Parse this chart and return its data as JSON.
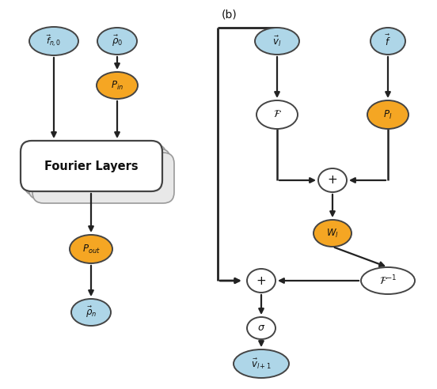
{
  "bg_color": "#ffffff",
  "blue_color": "#aed6e8",
  "orange_color": "#f5a623",
  "white_color": "#ffffff",
  "border_color": "#444444",
  "arrow_color": "#222222",
  "text_color": "#111111",
  "figsize": [
    5.52,
    4.92
  ],
  "dpi": 100
}
